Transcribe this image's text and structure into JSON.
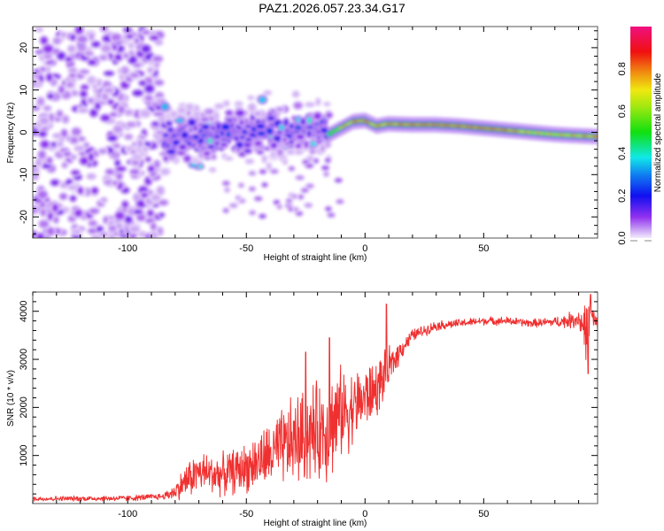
{
  "title": "PAZ1.2026.057.23.34.G17",
  "chart_data": [
    {
      "type": "heatmap",
      "name": "spectrogram",
      "xlabel": "Height of straight line (km)",
      "ylabel": "Frequency (Hz)",
      "xlim": [
        -140,
        98
      ],
      "ylim": [
        -25,
        25
      ],
      "xticks": [
        -100,
        -50,
        0,
        50
      ],
      "xtick_labels": [
        "-100",
        "-50",
        "0",
        "50"
      ],
      "yticks": [
        -20,
        -10,
        0,
        10,
        20
      ],
      "ytick_labels": [
        "-20",
        "-10",
        "0",
        "10",
        "20"
      ],
      "grid": false,
      "colorbar": {
        "label": "Normalized spectral amplitude",
        "range": [
          0.0,
          1.0
        ],
        "ticks": [
          0.0,
          0.2,
          0.4,
          0.6,
          0.8
        ],
        "tick_labels": [
          "0.0",
          "0.2",
          "0.4",
          "0.6",
          "0.8"
        ],
        "colors": [
          "#ffffff",
          "#e8d8f8",
          "#9a40f0",
          "#1010f0",
          "#1060f0",
          "#10e8e8",
          "#10e010",
          "#e8e810",
          "#f08010",
          "#f01010",
          "#f01080"
        ]
      },
      "regions": [
        {
          "description": "noise",
          "x_range": [
            -140,
            -85
          ],
          "freq_range": [
            -25,
            25
          ],
          "amplitude": 0.05
        },
        {
          "description": "scattered signal",
          "x_range": [
            -85,
            -15
          ],
          "freq_center_at_start": -1.5,
          "freq_center_at_end": 1.5,
          "freq_spread_hz": 6,
          "amplitude": 0.2
        },
        {
          "description": "coherent signal track",
          "x_range": [
            -15,
            98
          ],
          "amplitude": 0.85
        }
      ],
      "signal_track": {
        "x": [
          -15,
          -10,
          -5,
          0,
          5,
          10,
          20,
          30,
          40,
          50,
          60,
          70,
          80,
          90,
          98
        ],
        "freq": [
          -0.5,
          1,
          2.5,
          2.8,
          1.5,
          2,
          1.8,
          1.8,
          1.5,
          1,
          0.5,
          0,
          -0.5,
          -0.8,
          -1
        ],
        "amplitude": [
          0.45,
          0.75,
          0.85,
          0.9,
          0.8,
          0.85,
          0.9,
          0.95,
          0.9,
          0.95,
          0.9,
          0.75,
          0.75,
          0.8,
          0.85
        ]
      }
    },
    {
      "type": "line",
      "name": "snr",
      "xlabel": "Height of straight line (km)",
      "ylabel": "SNR (10 * v/v)",
      "xlim": [
        -140,
        98
      ],
      "ylim": [
        0,
        4400
      ],
      "xticks": [
        -100,
        -50,
        0,
        50
      ],
      "xtick_labels": [
        "-100",
        "-50",
        "0",
        "50"
      ],
      "yticks": [
        1000,
        2000,
        3000,
        4000
      ],
      "ytick_labels": [
        "1000",
        "2000",
        "3000",
        "4000"
      ],
      "grid": false,
      "color": "#f03030",
      "envelope": {
        "x": [
          -140,
          -100,
          -85,
          -80,
          -75,
          -70,
          -60,
          -50,
          -40,
          -30,
          -20,
          -15,
          -10,
          -5,
          0,
          5,
          10,
          15,
          20,
          30,
          40,
          50,
          60,
          70,
          80,
          85,
          90,
          93,
          95,
          98
        ],
        "mean": [
          100,
          110,
          150,
          250,
          500,
          650,
          600,
          750,
          1000,
          1300,
          1500,
          1600,
          1900,
          2000,
          2200,
          2400,
          2800,
          3200,
          3500,
          3700,
          3750,
          3800,
          3800,
          3750,
          3780,
          3800,
          3850,
          3600,
          3900,
          3700
        ],
        "spread": [
          60,
          70,
          80,
          200,
          450,
          500,
          500,
          600,
          800,
          1100,
          1200,
          1300,
          1100,
          900,
          800,
          700,
          500,
          250,
          150,
          120,
          100,
          100,
          100,
          100,
          120,
          180,
          250,
          700,
          400,
          150
        ]
      },
      "peaks": [
        {
          "x": -25,
          "y": 3150
        },
        {
          "x": -15,
          "y": 3450
        },
        {
          "x": 9,
          "y": 4150
        },
        {
          "x": 95,
          "y": 4350
        },
        {
          "x": 94,
          "y": 2700
        }
      ]
    }
  ]
}
